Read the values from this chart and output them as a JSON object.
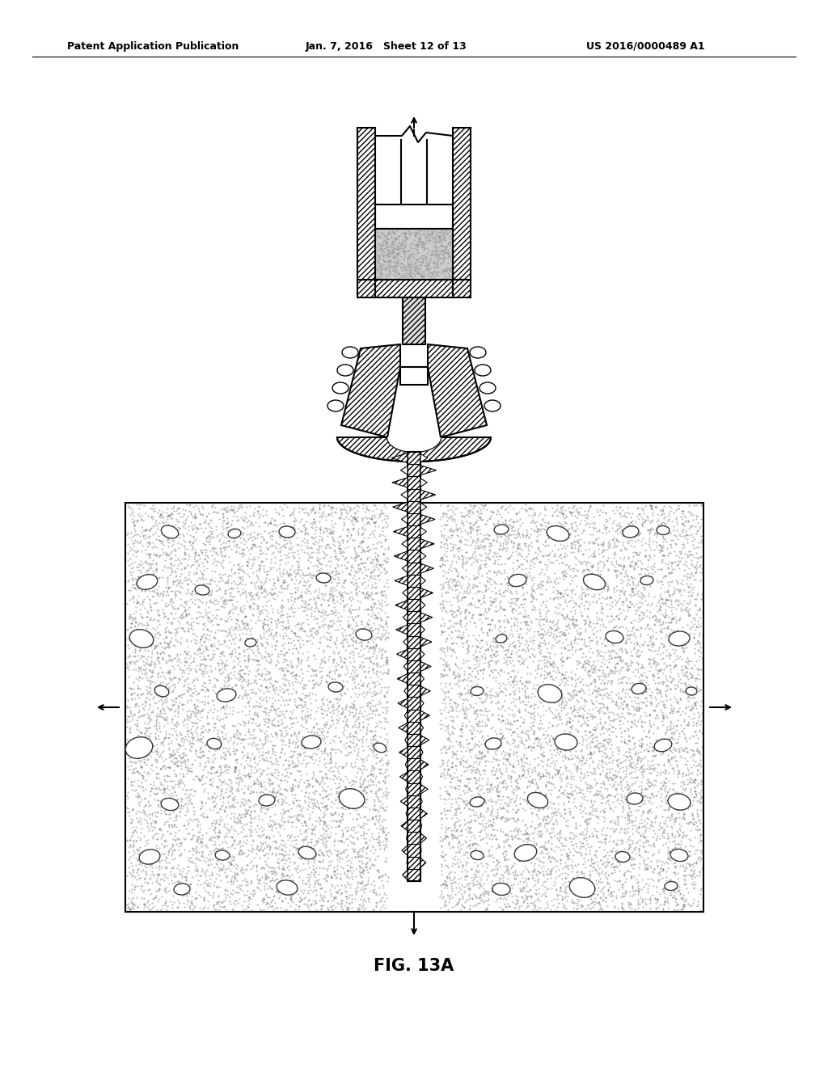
{
  "header_left": "Patent Application Publication",
  "header_mid": "Jan. 7, 2016   Sheet 12 of 13",
  "header_right": "US 2016/0000489 A1",
  "fig_label": "FIG. 13A",
  "bg_color": "#ffffff",
  "text_color": "#000000",
  "bone_bg": "#c8c8c8",
  "gray_fill": "#c0c0c0",
  "stipple_color": "#888888"
}
